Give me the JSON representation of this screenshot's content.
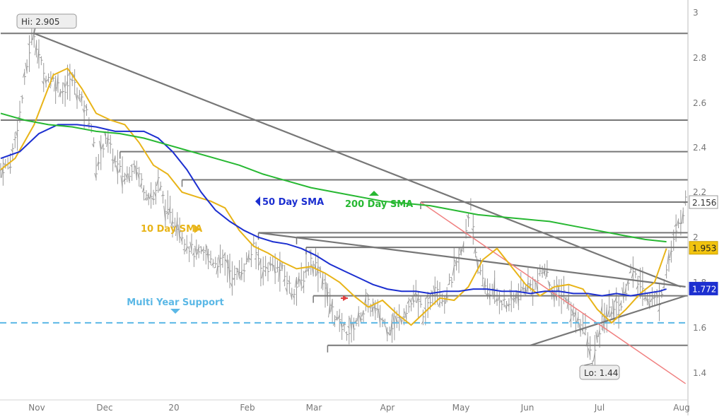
{
  "chart_data": {
    "type": "line",
    "title": "",
    "xlabel": "",
    "ylabel": "",
    "ylim": [
      1.33,
      3.03
    ],
    "y_ticks": [
      "3",
      "2.8",
      "2.6",
      "2.4",
      "2.2",
      "2",
      "1.8",
      "1.6",
      "1.4"
    ],
    "x_ticks": [
      "Nov",
      "Dec",
      "20",
      "Feb",
      "Mar",
      "Apr",
      "May",
      "Jun",
      "Jul",
      "Aug"
    ],
    "series": [
      {
        "name": "10 Day SMA",
        "color": "#e8b418",
        "points": [
          [
            0,
            2.3
          ],
          [
            6,
            2.35
          ],
          [
            14,
            2.5
          ],
          [
            22,
            2.72
          ],
          [
            28,
            2.75
          ],
          [
            34,
            2.66
          ],
          [
            40,
            2.55
          ],
          [
            46,
            2.52
          ],
          [
            52,
            2.5
          ],
          [
            58,
            2.42
          ],
          [
            64,
            2.32
          ],
          [
            70,
            2.28
          ],
          [
            76,
            2.2
          ],
          [
            82,
            2.18
          ],
          [
            88,
            2.16
          ],
          [
            94,
            2.13
          ],
          [
            100,
            2.03
          ],
          [
            106,
            1.96
          ],
          [
            112,
            1.93
          ],
          [
            118,
            1.89
          ],
          [
            124,
            1.86
          ],
          [
            130,
            1.87
          ],
          [
            136,
            1.84
          ],
          [
            142,
            1.8
          ],
          [
            148,
            1.74
          ],
          [
            154,
            1.69
          ],
          [
            160,
            1.72
          ],
          [
            166,
            1.66
          ],
          [
            172,
            1.61
          ],
          [
            178,
            1.67
          ],
          [
            184,
            1.73
          ],
          [
            190,
            1.72
          ],
          [
            196,
            1.78
          ],
          [
            202,
            1.9
          ],
          [
            208,
            1.95
          ],
          [
            214,
            1.87
          ],
          [
            220,
            1.79
          ],
          [
            226,
            1.74
          ],
          [
            232,
            1.78
          ],
          [
            238,
            1.79
          ],
          [
            244,
            1.77
          ],
          [
            250,
            1.68
          ],
          [
            256,
            1.62
          ],
          [
            262,
            1.68
          ],
          [
            268,
            1.75
          ],
          [
            274,
            1.8
          ],
          [
            279,
            1.95
          ]
        ]
      },
      {
        "name": "50 Day SMA",
        "color": "#1c2fd0",
        "points": [
          [
            0,
            2.35
          ],
          [
            8,
            2.38
          ],
          [
            16,
            2.46
          ],
          [
            24,
            2.5
          ],
          [
            32,
            2.5
          ],
          [
            40,
            2.49
          ],
          [
            48,
            2.47
          ],
          [
            56,
            2.47
          ],
          [
            60,
            2.47
          ],
          [
            66,
            2.44
          ],
          [
            72,
            2.38
          ],
          [
            78,
            2.3
          ],
          [
            84,
            2.2
          ],
          [
            90,
            2.12
          ],
          [
            96,
            2.07
          ],
          [
            102,
            2.03
          ],
          [
            108,
            2.0
          ],
          [
            114,
            1.98
          ],
          [
            120,
            1.97
          ],
          [
            126,
            1.95
          ],
          [
            132,
            1.92
          ],
          [
            138,
            1.88
          ],
          [
            144,
            1.85
          ],
          [
            150,
            1.82
          ],
          [
            156,
            1.79
          ],
          [
            162,
            1.77
          ],
          [
            168,
            1.76
          ],
          [
            174,
            1.76
          ],
          [
            180,
            1.75
          ],
          [
            186,
            1.76
          ],
          [
            192,
            1.76
          ],
          [
            198,
            1.77
          ],
          [
            204,
            1.77
          ],
          [
            210,
            1.76
          ],
          [
            216,
            1.76
          ],
          [
            222,
            1.75
          ],
          [
            228,
            1.76
          ],
          [
            234,
            1.76
          ],
          [
            240,
            1.75
          ],
          [
            246,
            1.75
          ],
          [
            252,
            1.74
          ],
          [
            258,
            1.75
          ],
          [
            264,
            1.74
          ],
          [
            270,
            1.75
          ],
          [
            276,
            1.76
          ],
          [
            279,
            1.77
          ]
        ]
      },
      {
        "name": "200 Day SMA",
        "color": "#27b832",
        "points": [
          [
            0,
            2.55
          ],
          [
            10,
            2.52
          ],
          [
            20,
            2.5
          ],
          [
            30,
            2.49
          ],
          [
            40,
            2.47
          ],
          [
            50,
            2.46
          ],
          [
            60,
            2.44
          ],
          [
            70,
            2.41
          ],
          [
            80,
            2.38
          ],
          [
            90,
            2.35
          ],
          [
            100,
            2.32
          ],
          [
            110,
            2.28
          ],
          [
            120,
            2.25
          ],
          [
            130,
            2.22
          ],
          [
            140,
            2.2
          ],
          [
            150,
            2.18
          ],
          [
            160,
            2.16
          ],
          [
            170,
            2.15
          ],
          [
            180,
            2.14
          ],
          [
            190,
            2.12
          ],
          [
            200,
            2.1
          ],
          [
            210,
            2.09
          ],
          [
            220,
            2.08
          ],
          [
            230,
            2.07
          ],
          [
            240,
            2.05
          ],
          [
            250,
            2.03
          ],
          [
            260,
            2.01
          ],
          [
            270,
            1.99
          ],
          [
            279,
            1.98
          ]
        ]
      }
    ],
    "price_data": {
      "anchors": [
        [
          0,
          2.3
        ],
        [
          4,
          2.33
        ],
        [
          8,
          2.55
        ],
        [
          12,
          2.83
        ],
        [
          14,
          2.905
        ],
        [
          18,
          2.72
        ],
        [
          22,
          2.7
        ],
        [
          26,
          2.65
        ],
        [
          30,
          2.7
        ],
        [
          34,
          2.6
        ],
        [
          38,
          2.5
        ],
        [
          40,
          2.3
        ],
        [
          44,
          2.45
        ],
        [
          48,
          2.33
        ],
        [
          52,
          2.26
        ],
        [
          56,
          2.33
        ],
        [
          60,
          2.22
        ],
        [
          64,
          2.17
        ],
        [
          66,
          2.25
        ],
        [
          70,
          2.1
        ],
        [
          74,
          2.06
        ],
        [
          78,
          1.97
        ],
        [
          82,
          1.92
        ],
        [
          86,
          1.92
        ],
        [
          90,
          1.89
        ],
        [
          94,
          1.89
        ],
        [
          98,
          1.82
        ],
        [
          102,
          1.87
        ],
        [
          106,
          1.95
        ],
        [
          110,
          1.86
        ],
        [
          114,
          1.87
        ],
        [
          118,
          1.85
        ],
        [
          122,
          1.76
        ],
        [
          126,
          1.8
        ],
        [
          130,
          1.9
        ],
        [
          134,
          1.85
        ],
        [
          138,
          1.7
        ],
        [
          142,
          1.61
        ],
        [
          146,
          1.58
        ],
        [
          150,
          1.64
        ],
        [
          154,
          1.7
        ],
        [
          158,
          1.66
        ],
        [
          162,
          1.6
        ],
        [
          166,
          1.62
        ],
        [
          170,
          1.68
        ],
        [
          174,
          1.73
        ],
        [
          178,
          1.65
        ],
        [
          182,
          1.8
        ],
        [
          186,
          1.72
        ],
        [
          190,
          1.85
        ],
        [
          194,
          1.95
        ],
        [
          197,
          2.156
        ],
        [
          200,
          1.85
        ],
        [
          204,
          1.77
        ],
        [
          208,
          1.74
        ],
        [
          212,
          1.7
        ],
        [
          216,
          1.73
        ],
        [
          220,
          1.78
        ],
        [
          224,
          1.79
        ],
        [
          228,
          1.86
        ],
        [
          232,
          1.74
        ],
        [
          236,
          1.76
        ],
        [
          240,
          1.65
        ],
        [
          244,
          1.62
        ],
        [
          248,
          1.44
        ],
        [
          252,
          1.63
        ],
        [
          256,
          1.68
        ],
        [
          260,
          1.7
        ],
        [
          264,
          1.85
        ],
        [
          268,
          1.78
        ],
        [
          272,
          1.73
        ],
        [
          276,
          1.72
        ],
        [
          280,
          1.9
        ],
        [
          284,
          2.05
        ],
        [
          287,
          2.156
        ]
      ],
      "color": "#9a9a9a"
    },
    "horizontal_lines": [
      {
        "y": 2.905,
        "x_from": 0,
        "color": "#777777"
      },
      {
        "y": 2.52,
        "x_from": 0,
        "color": "#777777"
      },
      {
        "y": 2.38,
        "x_from": 50,
        "color": "#777777"
      },
      {
        "y": 2.255,
        "x_from": 76,
        "color": "#777777"
      },
      {
        "y": 2.156,
        "x_from": 176,
        "color": "#777777"
      },
      {
        "y": 2.02,
        "x_from": 108,
        "color": "#777777"
      },
      {
        "y": 2.0,
        "x_from": 124,
        "color": "#777777"
      },
      {
        "y": 1.955,
        "x_from": 128,
        "color": "#777777"
      },
      {
        "y": 1.74,
        "x_from": 131,
        "color": "#777777"
      },
      {
        "y": 1.52,
        "x_from": 137,
        "color": "#777777"
      }
    ],
    "trend_lines": [
      {
        "from": [
          14,
          2.905
        ],
        "to": [
          285,
          1.78
        ],
        "color": "#777777"
      },
      {
        "from": [
          108,
          2.02
        ],
        "to": [
          287,
          1.78
        ],
        "color": "#777777"
      },
      {
        "from": [
          222,
          1.52
        ],
        "to": [
          287,
          1.74
        ],
        "color": "#777777"
      },
      {
        "from": [
          176,
          2.156
        ],
        "to": [
          287,
          1.35
        ],
        "color": "#f08080"
      }
    ],
    "support_line": {
      "y": 1.62,
      "label": "Multi Year Support",
      "color": "#5bb8e6"
    },
    "annotations": [
      {
        "text": "Hi: 2.905",
        "at": [
          14,
          2.905
        ],
        "color": "#333333"
      },
      {
        "text": "Lo: 1.44",
        "at": [
          248,
          1.44
        ],
        "color": "#333333"
      },
      {
        "text": "50 Day SMA",
        "at": [
          98,
          2.15
        ],
        "color": "#1c2fd0"
      },
      {
        "text": "200 Day SMA",
        "at": [
          141,
          2.17
        ],
        "color": "#27b832"
      },
      {
        "text": "10 Day SMA",
        "at": [
          64,
          2.04
        ],
        "color": "#e8b418"
      }
    ],
    "price_labels": [
      {
        "value": "2.156",
        "y": 2.156,
        "bg": "#ffffff",
        "fg": "#333333",
        "border": "#999999"
      },
      {
        "value": "1.953",
        "y": 1.953,
        "bg": "#f2c40f",
        "fg": "#222222",
        "border": "#c9a000"
      },
      {
        "value": "1.772",
        "y": 1.772,
        "bg": "#1c2fd0",
        "fg": "#ffffff",
        "border": "#1c2fd0"
      }
    ]
  }
}
